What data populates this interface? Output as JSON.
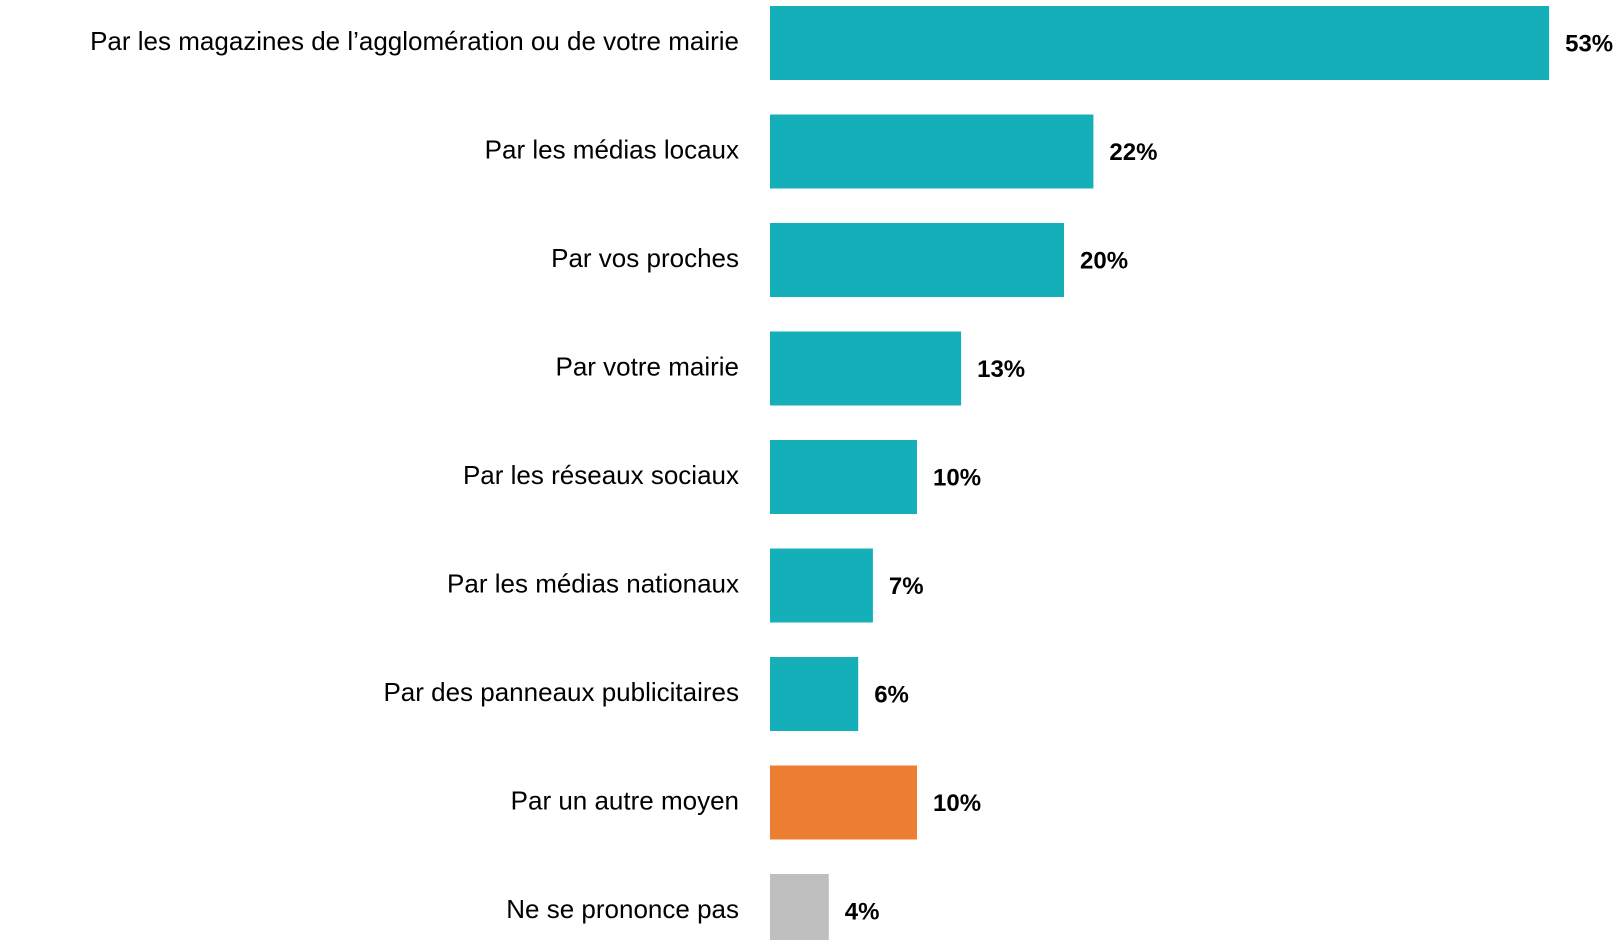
{
  "chart_data": {
    "type": "bar",
    "orientation": "horizontal",
    "categories": [
      "Par les magazines de l’agglomération ou de votre mairie",
      "Par les médias locaux",
      "Par vos proches",
      "Par votre mairie",
      "Par les réseaux sociaux",
      "Par les médias nationaux",
      "Par des panneaux publicitaires",
      "Par un autre moyen",
      "Ne se prononce pas"
    ],
    "values": [
      53,
      22,
      20,
      13,
      10,
      7,
      6,
      10,
      4
    ],
    "value_labels": [
      "53%",
      "22%",
      "20%",
      "13%",
      "10%",
      "7%",
      "6%",
      "10%",
      "4%"
    ],
    "colors": [
      "#14afb8",
      "#14afb8",
      "#14afb8",
      "#14afb8",
      "#14afb8",
      "#14afb8",
      "#14afb8",
      "#ed7d31",
      "#bfbfbf"
    ]
  }
}
